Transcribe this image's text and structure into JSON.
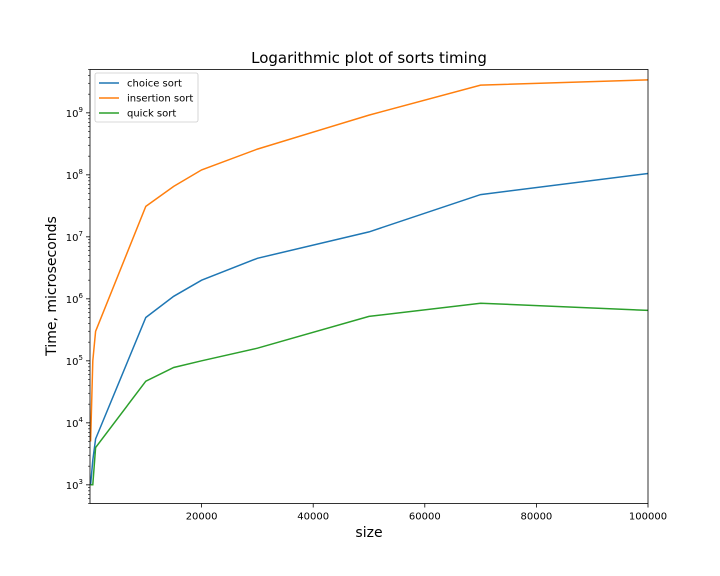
{
  "chart_data": {
    "type": "line",
    "title": "Logarithmic plot of sorts timing",
    "xlabel": "size",
    "ylabel": "Time, microseconds",
    "xlim": [
      0,
      100000
    ],
    "ylim": [
      500,
      5000000000
    ],
    "yscale": "log",
    "grid": false,
    "legend_position": "top-left",
    "x_ticks": [
      20000,
      40000,
      60000,
      80000,
      100000
    ],
    "x_tick_labels": [
      "20000",
      "40000",
      "60000",
      "80000",
      "100000"
    ],
    "y_ticks": [
      1000,
      10000,
      100000,
      1000000,
      10000000,
      100000000,
      1000000000
    ],
    "y_tick_labels": [
      {
        "base": "10",
        "exp": "3"
      },
      {
        "base": "10",
        "exp": "4"
      },
      {
        "base": "10",
        "exp": "5"
      },
      {
        "base": "10",
        "exp": "6"
      },
      {
        "base": "10",
        "exp": "7"
      },
      {
        "base": "10",
        "exp": "8"
      },
      {
        "base": "10",
        "exp": "9"
      }
    ],
    "series": [
      {
        "name": "choice sort",
        "color": "#1f77b4",
        "x": [
          100,
          500,
          1000,
          10000,
          15000,
          20000,
          30000,
          50000,
          70000,
          100000
        ],
        "y": [
          1000,
          2500,
          5500,
          500000,
          1100000,
          2000000,
          4500000,
          12000000,
          48000000,
          105000000
        ]
      },
      {
        "name": "insertion sort",
        "color": "#ff7f0e",
        "x": [
          100,
          500,
          1000,
          10000,
          15000,
          20000,
          30000,
          50000,
          70000,
          100000
        ],
        "y": [
          5000,
          100000,
          300000,
          31000000,
          65000000,
          120000000,
          260000000,
          920000000,
          2800000000,
          3400000000
        ]
      },
      {
        "name": "quick sort",
        "color": "#2ca02c",
        "x": [
          100,
          500,
          1000,
          10000,
          15000,
          20000,
          30000,
          50000,
          70000,
          100000
        ],
        "y": [
          1000,
          1000,
          4000,
          47000,
          78000,
          100000,
          160000,
          520000,
          850000,
          650000
        ]
      }
    ]
  }
}
